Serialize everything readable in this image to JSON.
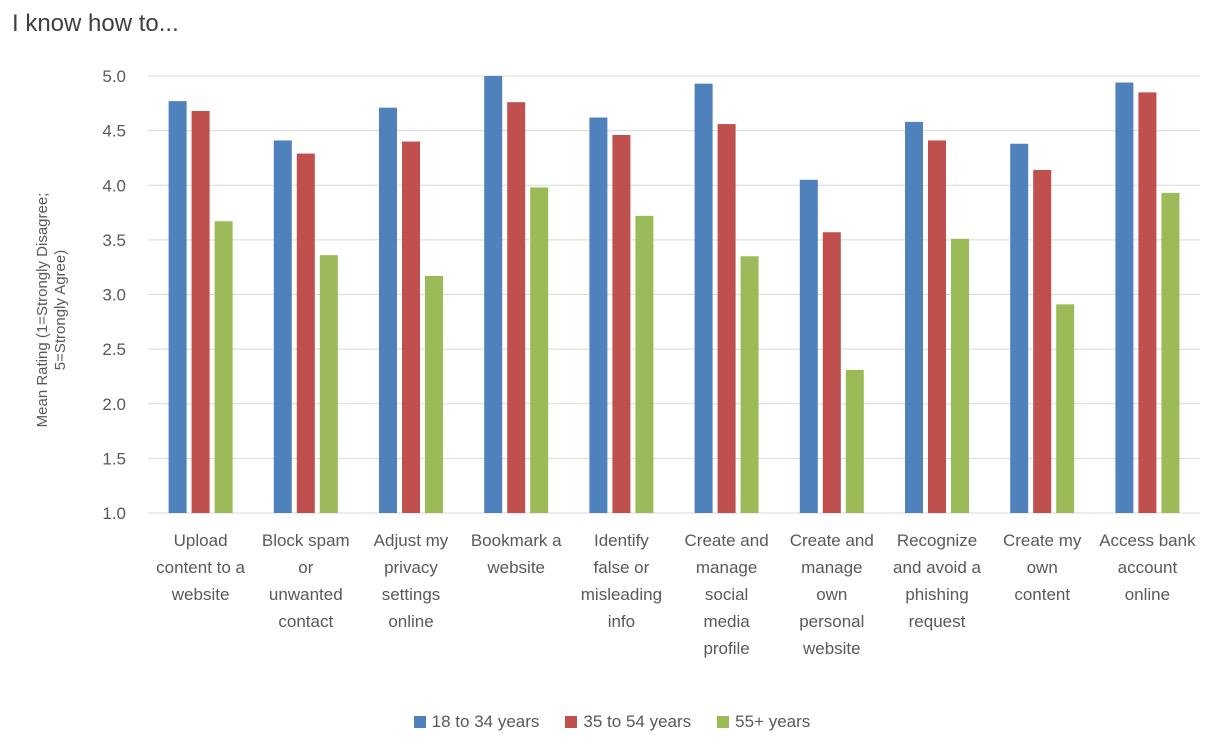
{
  "chart_data": {
    "type": "bar",
    "title": "I know how to...",
    "ylabel": "Mean Rating (1=Strongly Disagree; 5=Strongly Agree)",
    "ylabel_lines": [
      "Mean Rating (1=Strongly Disagree;",
      "5=Strongly Agree)"
    ],
    "xlabel": "",
    "ylim": [
      1.0,
      5.0
    ],
    "yticks": [
      "1.0",
      "1.5",
      "2.0",
      "2.5",
      "3.0",
      "3.5",
      "4.0",
      "4.5",
      "5.0"
    ],
    "grid": true,
    "legend_position": "bottom",
    "categories": [
      [
        "Upload",
        "content to a",
        "website"
      ],
      [
        "Block spam",
        "or",
        "unwanted",
        "contact"
      ],
      [
        "Adjust my",
        "privacy",
        "settings",
        "online"
      ],
      [
        "Bookmark a",
        "website"
      ],
      [
        "Identify",
        "false or",
        "misleading",
        "info"
      ],
      [
        "Create and",
        "manage",
        "social",
        "media",
        "profile"
      ],
      [
        "Create and",
        "manage",
        "own",
        "personal",
        "website"
      ],
      [
        "Recognize",
        "and avoid a",
        "phishing",
        "request"
      ],
      [
        "Create my",
        "own",
        "content"
      ],
      [
        "Access bank",
        "account",
        "online"
      ]
    ],
    "series": [
      {
        "name": "18 to 34 years",
        "color": "#4F81BD",
        "values": [
          4.77,
          4.41,
          4.71,
          5.0,
          4.62,
          4.93,
          4.05,
          4.58,
          4.38,
          4.94
        ]
      },
      {
        "name": "35 to 54 years",
        "color": "#C0504D",
        "values": [
          4.68,
          4.29,
          4.4,
          4.76,
          4.46,
          4.56,
          3.57,
          4.41,
          4.14,
          4.85
        ]
      },
      {
        "name": "55+ years",
        "color": "#9BBB59",
        "values": [
          3.67,
          3.36,
          3.17,
          3.98,
          3.72,
          3.35,
          2.31,
          3.51,
          2.91,
          3.93
        ]
      }
    ]
  }
}
